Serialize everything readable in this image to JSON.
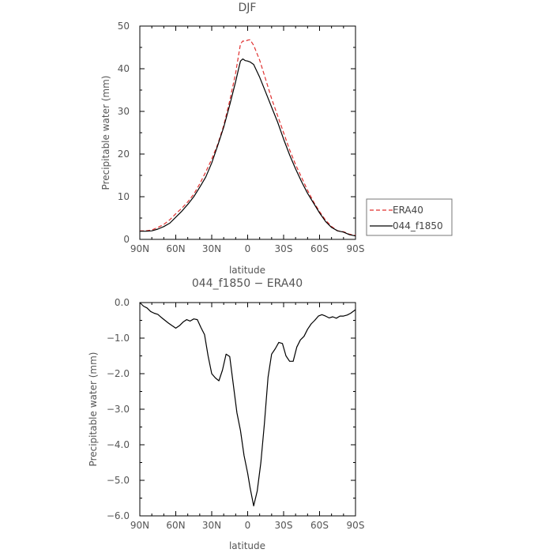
{
  "chart_data": [
    {
      "type": "line",
      "title": "DJF",
      "xlabel": "latitude",
      "ylabel": "Precipitable water  (mm)",
      "x_tick_labels": [
        "90N",
        "60N",
        "30N",
        "0",
        "30S",
        "60S",
        "90S"
      ],
      "y_tick_labels": [
        "0",
        "10",
        "20",
        "30",
        "40",
        "50"
      ],
      "xlim": [
        90,
        -90
      ],
      "ylim": [
        0,
        50
      ],
      "legend": {
        "placement": "right-outside"
      },
      "series": [
        {
          "name": "ERA40",
          "color": "#e0302f",
          "dash": "dashed",
          "x": [
            90,
            85,
            80,
            75,
            70,
            65,
            60,
            55,
            50,
            45,
            40,
            35,
            30,
            25,
            20,
            15,
            10,
            8,
            6,
            4,
            2,
            0,
            -2,
            -5,
            -10,
            -15,
            -20,
            -25,
            -30,
            -35,
            -40,
            -45,
            -50,
            -55,
            -60,
            -65,
            -70,
            -75,
            -80,
            -85,
            -90
          ],
          "values": [
            2.0,
            2.0,
            2.2,
            2.8,
            3.5,
            4.6,
            6.0,
            7.3,
            8.8,
            10.6,
            13.0,
            15.8,
            18.8,
            22.3,
            26.7,
            32.5,
            39.0,
            42.5,
            45.8,
            46.5,
            46.4,
            46.7,
            46.8,
            45.5,
            42.0,
            37.5,
            33.0,
            29.0,
            25.0,
            21.0,
            17.5,
            14.5,
            11.5,
            8.8,
            6.5,
            4.5,
            3.0,
            2.0,
            1.8,
            1.2,
            0.9
          ]
        },
        {
          "name": "044_f1850",
          "color": "#000000",
          "dash": "solid",
          "x": [
            90,
            85,
            80,
            75,
            70,
            65,
            60,
            55,
            50,
            45,
            40,
            35,
            30,
            25,
            20,
            15,
            10,
            8,
            6,
            4,
            2,
            0,
            -2,
            -5,
            -10,
            -15,
            -20,
            -25,
            -30,
            -35,
            -40,
            -45,
            -50,
            -55,
            -60,
            -65,
            -70,
            -75,
            -80,
            -85,
            -90
          ],
          "values": [
            1.9,
            1.9,
            2.0,
            2.4,
            3.0,
            3.8,
            5.2,
            6.6,
            8.2,
            10.0,
            12.2,
            14.6,
            17.9,
            22.0,
            26.3,
            31.5,
            37.0,
            39.5,
            41.8,
            42.3,
            41.9,
            41.8,
            41.6,
            41.0,
            38.0,
            34.5,
            31.0,
            27.5,
            23.5,
            19.8,
            16.5,
            13.5,
            10.8,
            8.5,
            6.2,
            4.2,
            2.8,
            2.0,
            1.7,
            1.1,
            0.8
          ]
        }
      ]
    },
    {
      "type": "line",
      "title": "044_f1850 − ERA40",
      "xlabel": "latitude",
      "ylabel": "Precipitable water  (mm)",
      "x_tick_labels": [
        "90N",
        "60N",
        "30N",
        "0",
        "30S",
        "60S",
        "90S"
      ],
      "y_tick_labels": [
        "0.0",
        "−1.0",
        "−2.0",
        "−3.0",
        "−4.0",
        "−5.0",
        "−6.0"
      ],
      "xlim": [
        90,
        -90
      ],
      "ylim": [
        -6,
        0
      ],
      "series": [
        {
          "color": "#000000",
          "dash": "solid",
          "x": [
            90,
            87,
            84,
            81,
            78,
            75,
            72,
            69,
            66,
            63,
            60,
            57,
            54,
            51,
            48,
            45,
            42,
            39,
            36,
            33,
            30,
            27,
            24,
            21,
            18,
            15,
            12,
            9,
            6,
            3,
            0,
            -2,
            -5,
            -8,
            -11,
            -14,
            -17,
            -20,
            -23,
            -26,
            -29,
            -32,
            -35,
            -38,
            -41,
            -44,
            -47,
            -50,
            -53,
            -56,
            -59,
            -62,
            -65,
            -68,
            -71,
            -74,
            -77,
            -80,
            -83,
            -86,
            -90
          ],
          "values": [
            0.0,
            -0.1,
            -0.15,
            -0.25,
            -0.3,
            -0.33,
            -0.42,
            -0.5,
            -0.58,
            -0.65,
            -0.72,
            -0.65,
            -0.55,
            -0.48,
            -0.52,
            -0.46,
            -0.48,
            -0.7,
            -0.9,
            -1.5,
            -2.0,
            -2.12,
            -2.2,
            -1.9,
            -1.45,
            -1.52,
            -2.3,
            -3.1,
            -3.6,
            -4.3,
            -4.8,
            -5.2,
            -5.72,
            -5.3,
            -4.5,
            -3.4,
            -2.1,
            -1.45,
            -1.3,
            -1.12,
            -1.15,
            -1.5,
            -1.65,
            -1.65,
            -1.25,
            -1.05,
            -0.95,
            -0.75,
            -0.6,
            -0.5,
            -0.38,
            -0.34,
            -0.38,
            -0.43,
            -0.4,
            -0.44,
            -0.38,
            -0.38,
            -0.35,
            -0.3,
            -0.2
          ]
        }
      ]
    }
  ]
}
